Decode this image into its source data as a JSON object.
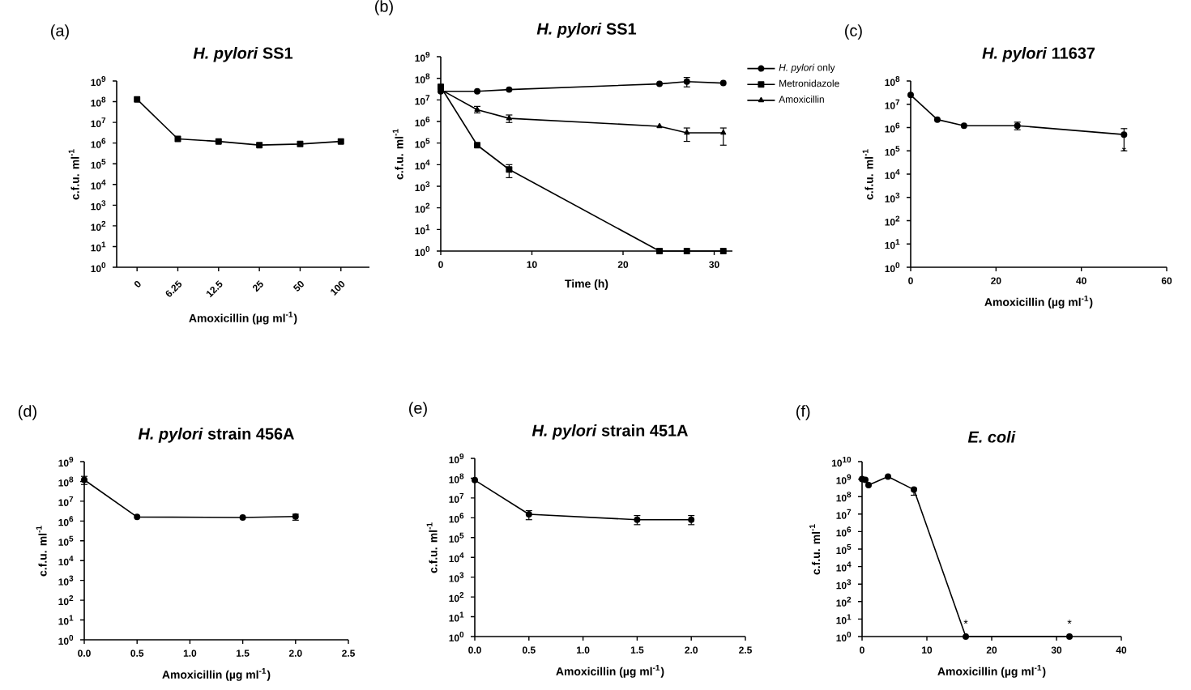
{
  "chart_data": [
    {
      "type": "line",
      "title": "*H. pylori* SS1",
      "xlabel": "Amoxicillin (µg ml$^{-1}$)",
      "ylabel": "c.f.u. ml$^{-1}$",
      "annotations": [
        "(a)"
      ],
      "log": "y",
      "marker": "square",
      "color": "#000000",
      "categories": [
        "0",
        "6.25",
        "12.5",
        "25",
        "50",
        "100"
      ],
      "values": [
        130000000.0,
        1600000.0,
        1200000.0,
        800000.0,
        900000.0,
        1200000.0
      ],
      "ylim": [
        1,
        1000000000.0
      ],
      "yticks": [
        {
          "value": 1,
          "label": "10$^{0}$"
        },
        {
          "value": 10,
          "label": "10$^{1}$"
        },
        {
          "value": 100,
          "label": "10$^{2}$"
        },
        {
          "value": 1000.0,
          "label": "10$^{3}$"
        },
        {
          "value": 10000.0,
          "label": "10$^{4}$"
        },
        {
          "value": 100000.0,
          "label": "10$^{5}$"
        },
        {
          "value": 1000000.0,
          "label": "10$^{6}$"
        },
        {
          "value": 10000000.0,
          "label": "10$^{7}$"
        },
        {
          "value": 100000000.0,
          "label": "10$^{8}$"
        },
        {
          "value": 1000000000.0,
          "label": "10$^{9}$"
        }
      ]
    },
    {
      "type": "line",
      "title": "*H. pylori* SS1",
      "xlabel": "Time (h)",
      "ylabel": "c.f.u. ml$^{-1}$",
      "annotations": [
        "(b)"
      ],
      "log": "y",
      "legend": "right",
      "series": [
        {
          "name": "*H. pylori* only",
          "color": "#000000",
          "marker": "circle",
          "x": [
            0,
            4,
            7.5,
            24,
            27,
            31
          ],
          "values": [
            25000000.0,
            25000000.0,
            30000000.0,
            55000000.0,
            70000000.0,
            60000000.0
          ],
          "errors": [
            null,
            null,
            null,
            null,
            [
              40000000.0,
              110000000.0
            ],
            null
          ]
        },
        {
          "name": "Metronidazole",
          "color": "#000000",
          "marker": "square",
          "x": [
            0,
            4,
            7.5,
            24,
            27,
            31
          ],
          "values": [
            40000000.0,
            80000.0,
            6000.0,
            1,
            1,
            1
          ],
          "errors": [
            null,
            null,
            [
              2500.0,
              10000.0
            ],
            null,
            null,
            null
          ]
        },
        {
          "name": "Amoxicillin",
          "color": "#000000",
          "marker": "triangle",
          "x": [
            0,
            4,
            7.5,
            24,
            27,
            31
          ],
          "values": [
            30000000.0,
            3500000.0,
            1400000.0,
            600000.0,
            300000.0,
            300000.0
          ],
          "errors": [
            null,
            [
              2500000.0,
              5000000.0
            ],
            [
              900000.0,
              2000000.0
            ],
            null,
            [
              120000.0,
              500000.0
            ],
            [
              80000.0,
              500000.0
            ]
          ]
        }
      ],
      "xlim": [
        0,
        32
      ],
      "xticks": [
        0,
        10,
        20,
        30
      ],
      "ylim": [
        1,
        1000000000.0
      ],
      "yticks": [
        {
          "value": 1,
          "label": "10$^{0}$"
        },
        {
          "value": 10,
          "label": "10$^{1}$"
        },
        {
          "value": 100,
          "label": "10$^{2}$"
        },
        {
          "value": 1000.0,
          "label": "10$^{3}$"
        },
        {
          "value": 10000.0,
          "label": "10$^{4}$"
        },
        {
          "value": 100000.0,
          "label": "10$^{5}$"
        },
        {
          "value": 1000000.0,
          "label": "10$^{6}$"
        },
        {
          "value": 10000000.0,
          "label": "10$^{7}$"
        },
        {
          "value": 100000000.0,
          "label": "10$^{8}$"
        },
        {
          "value": 1000000000.0,
          "label": "10$^{9}$"
        }
      ]
    },
    {
      "type": "line",
      "title": "*H. pylori* 11637",
      "xlabel": "Amoxicillin (µg ml$^{-1}$)",
      "ylabel": "c.f.u. ml$^{-1}$",
      "annotations": [
        "(c)",
        {
          "text": "*",
          "x": 50,
          "y": 500000.0
        }
      ],
      "log": "y",
      "marker": "circle",
      "color": "#000000",
      "x": [
        0,
        6.25,
        12.5,
        25,
        50
      ],
      "values": [
        25000000.0,
        2200000.0,
        1200000.0,
        1200000.0,
        500000.0
      ],
      "errors": [
        null,
        null,
        null,
        [
          800000.0,
          1700000.0
        ],
        [
          100000.0,
          900000.0
        ]
      ],
      "xlim": [
        0,
        60
      ],
      "xticks": [
        0,
        20,
        40,
        60
      ],
      "ylim": [
        1,
        100000000.0
      ],
      "yticks": [
        {
          "value": 1,
          "label": "10$^{0}$"
        },
        {
          "value": 10,
          "label": "10$^{1}$"
        },
        {
          "value": 100,
          "label": "10$^{2}$"
        },
        {
          "value": 1000.0,
          "label": "10$^{3}$"
        },
        {
          "value": 10000.0,
          "label": "10$^{4}$"
        },
        {
          "value": 100000.0,
          "label": "10$^{5}$"
        },
        {
          "value": 1000000.0,
          "label": "10$^{6}$"
        },
        {
          "value": 10000000.0,
          "label": "10$^{7}$"
        },
        {
          "value": 100000000.0,
          "label": "10$^{8}$"
        }
      ]
    },
    {
      "type": "line",
      "title": "*H. pylori* strain 456A",
      "xlabel": "Amoxicillin (µg ml$^{-1}$)",
      "ylabel": "c.f.u. ml$^{-1}$",
      "annotations": [
        "(d)"
      ],
      "log": "y",
      "marker": "circle",
      "color": "#000000",
      "x": [
        0,
        0.5,
        1.5,
        2
      ],
      "values": [
        120000000.0,
        1600000.0,
        1500000.0,
        1700000.0
      ],
      "errors": [
        [
          70000000.0,
          180000000.0
        ],
        null,
        null,
        [
          1100000.0,
          2200000.0
        ]
      ],
      "xlim": [
        0,
        2.5
      ],
      "xticks": [
        {
          "value": 0,
          "label": "0.0"
        },
        {
          "value": 0.5,
          "label": "0.5"
        },
        {
          "value": 1,
          "label": "1.0"
        },
        {
          "value": 1.5,
          "label": "1.5"
        },
        {
          "value": 2,
          "label": "2.0"
        },
        {
          "value": 2.5,
          "label": "2.5"
        }
      ],
      "ylim": [
        1,
        1000000000.0
      ],
      "yticks": [
        {
          "value": 1,
          "label": "10$^{0}$"
        },
        {
          "value": 10,
          "label": "10$^{1}$"
        },
        {
          "value": 100,
          "label": "10$^{2}$"
        },
        {
          "value": 1000.0,
          "label": "10$^{3}$"
        },
        {
          "value": 10000.0,
          "label": "10$^{4}$"
        },
        {
          "value": 100000.0,
          "label": "10$^{5}$"
        },
        {
          "value": 1000000.0,
          "label": "10$^{6}$"
        },
        {
          "value": 10000000.0,
          "label": "10$^{7}$"
        },
        {
          "value": 100000000.0,
          "label": "10$^{8}$"
        },
        {
          "value": 1000000000.0,
          "label": "10$^{9}$"
        }
      ]
    },
    {
      "type": "line",
      "title": "*H. pylori* strain 451A",
      "xlabel": "Amoxicillin (µg ml$^{-1}$)",
      "ylabel": "c.f.u. ml$^{-1}$",
      "annotations": [
        "(e)"
      ],
      "log": "y",
      "marker": "circle",
      "color": "#000000",
      "x": [
        0,
        0.5,
        1.5,
        2
      ],
      "values": [
        80000000.0,
        1500000.0,
        800000.0,
        800000.0
      ],
      "errors": [
        null,
        [
          800000.0,
          2300000.0
        ],
        [
          450000.0,
          1300000.0
        ],
        [
          450000.0,
          1300000.0
        ]
      ],
      "xlim": [
        0,
        2.5
      ],
      "xticks": [
        {
          "value": 0,
          "label": "0.0"
        },
        {
          "value": 0.5,
          "label": "0.5"
        },
        {
          "value": 1,
          "label": "1.0"
        },
        {
          "value": 1.5,
          "label": "1.5"
        },
        {
          "value": 2,
          "label": "2.0"
        },
        {
          "value": 2.5,
          "label": "2.5"
        }
      ],
      "ylim": [
        1,
        1000000000.0
      ],
      "yticks": [
        {
          "value": 1,
          "label": "10$^{0}$"
        },
        {
          "value": 10,
          "label": "10$^{1}$"
        },
        {
          "value": 100,
          "label": "10$^{2}$"
        },
        {
          "value": 1000.0,
          "label": "10$^{3}$"
        },
        {
          "value": 10000.0,
          "label": "10$^{4}$"
        },
        {
          "value": 100000.0,
          "label": "10$^{5}$"
        },
        {
          "value": 1000000.0,
          "label": "10$^{6}$"
        },
        {
          "value": 10000000.0,
          "label": "10$^{7}$"
        },
        {
          "value": 100000000.0,
          "label": "10$^{8}$"
        },
        {
          "value": 1000000000.0,
          "label": "10$^{9}$"
        }
      ]
    },
    {
      "type": "line",
      "title": "*E. coli*",
      "xlabel": "Amoxicillin (µg ml$^{-1}$)",
      "ylabel": "c.f.u. ml$^{-1}$",
      "annotations": [
        "(f)",
        {
          "text": "*",
          "x": 16,
          "y": 1
        },
        {
          "text": "*",
          "x": 32,
          "y": 1
        }
      ],
      "log": "y",
      "marker": "circle",
      "color": "#000000",
      "x": [
        0,
        0.5,
        1,
        4,
        8,
        16,
        32
      ],
      "values": [
        1000000000.0,
        900000000.0,
        450000000.0,
        1400000000.0,
        250000000.0,
        1,
        1
      ],
      "errors": [
        null,
        null,
        null,
        null,
        [
          120000000.0,
          300000000.0
        ],
        null,
        null
      ],
      "xlim": [
        0,
        40
      ],
      "xticks": [
        0,
        10,
        20,
        30,
        40
      ],
      "ylim": [
        1,
        10000000000.0
      ],
      "yticks": [
        {
          "value": 1,
          "label": "10$^{0}$"
        },
        {
          "value": 10,
          "label": "10$^{1}$"
        },
        {
          "value": 100,
          "label": "10$^{2}$"
        },
        {
          "value": 1000.0,
          "label": "10$^{3}$"
        },
        {
          "value": 10000.0,
          "label": "10$^{4}$"
        },
        {
          "value": 100000.0,
          "label": "10$^{5}$"
        },
        {
          "value": 1000000.0,
          "label": "10$^{6}$"
        },
        {
          "value": 10000000.0,
          "label": "10$^{7}$"
        },
        {
          "value": 100000000.0,
          "label": "10$^{8}$"
        },
        {
          "value": 1000000000.0,
          "label": "10$^{9}$"
        },
        {
          "value": 10000000000.0,
          "label": "10$^{10}$"
        }
      ]
    }
  ]
}
